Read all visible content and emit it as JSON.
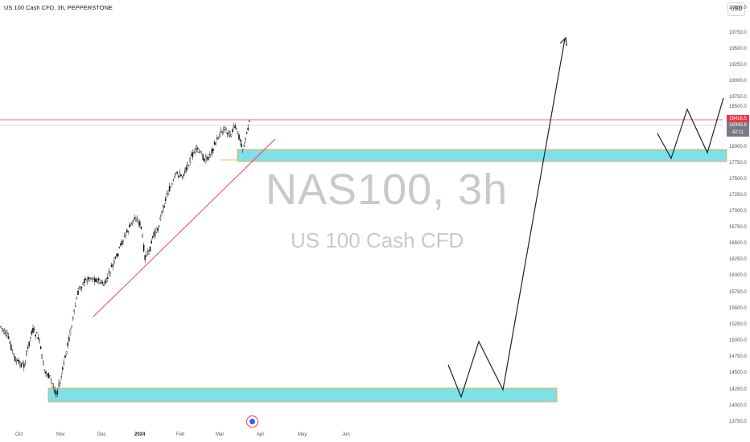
{
  "header": {
    "title": "US 100 Cash CFD, 3h, PEPPERSTONE",
    "currency": "USD"
  },
  "watermark": {
    "symbol": "NAS100, 3h",
    "description": "US 100 Cash CFD"
  },
  "price_axis": {
    "ticks": [
      "20000.0",
      "19750.0",
      "19500.0",
      "19250.0",
      "19000.0",
      "18750.0",
      "18500.0",
      "18000.0",
      "17750.0",
      "17500.0",
      "17250.0",
      "17000.0",
      "16750.0",
      "16500.0",
      "16250.0",
      "16000.0",
      "15750.0",
      "15500.0",
      "15250.0",
      "15000.0",
      "14750.0",
      "14500.0",
      "14250.0",
      "14000.0",
      "13750.0"
    ],
    "last_price": "18418.5",
    "ask_price": "18343.8",
    "countdown": "42:11"
  },
  "time_axis": {
    "labels": [
      "Oct",
      "Nov",
      "Dec",
      "2024",
      "Feb",
      "Mar",
      "Apr",
      "May",
      "Jun"
    ]
  },
  "colors": {
    "candle": "#131722",
    "zone_fill": "#7fe0e8",
    "zone_border": "#f5a623",
    "trendline": "#f23645",
    "projection": "#1e2228",
    "last_price_line": "#f23645"
  },
  "icons": {
    "events": "economic-events-icon"
  }
}
